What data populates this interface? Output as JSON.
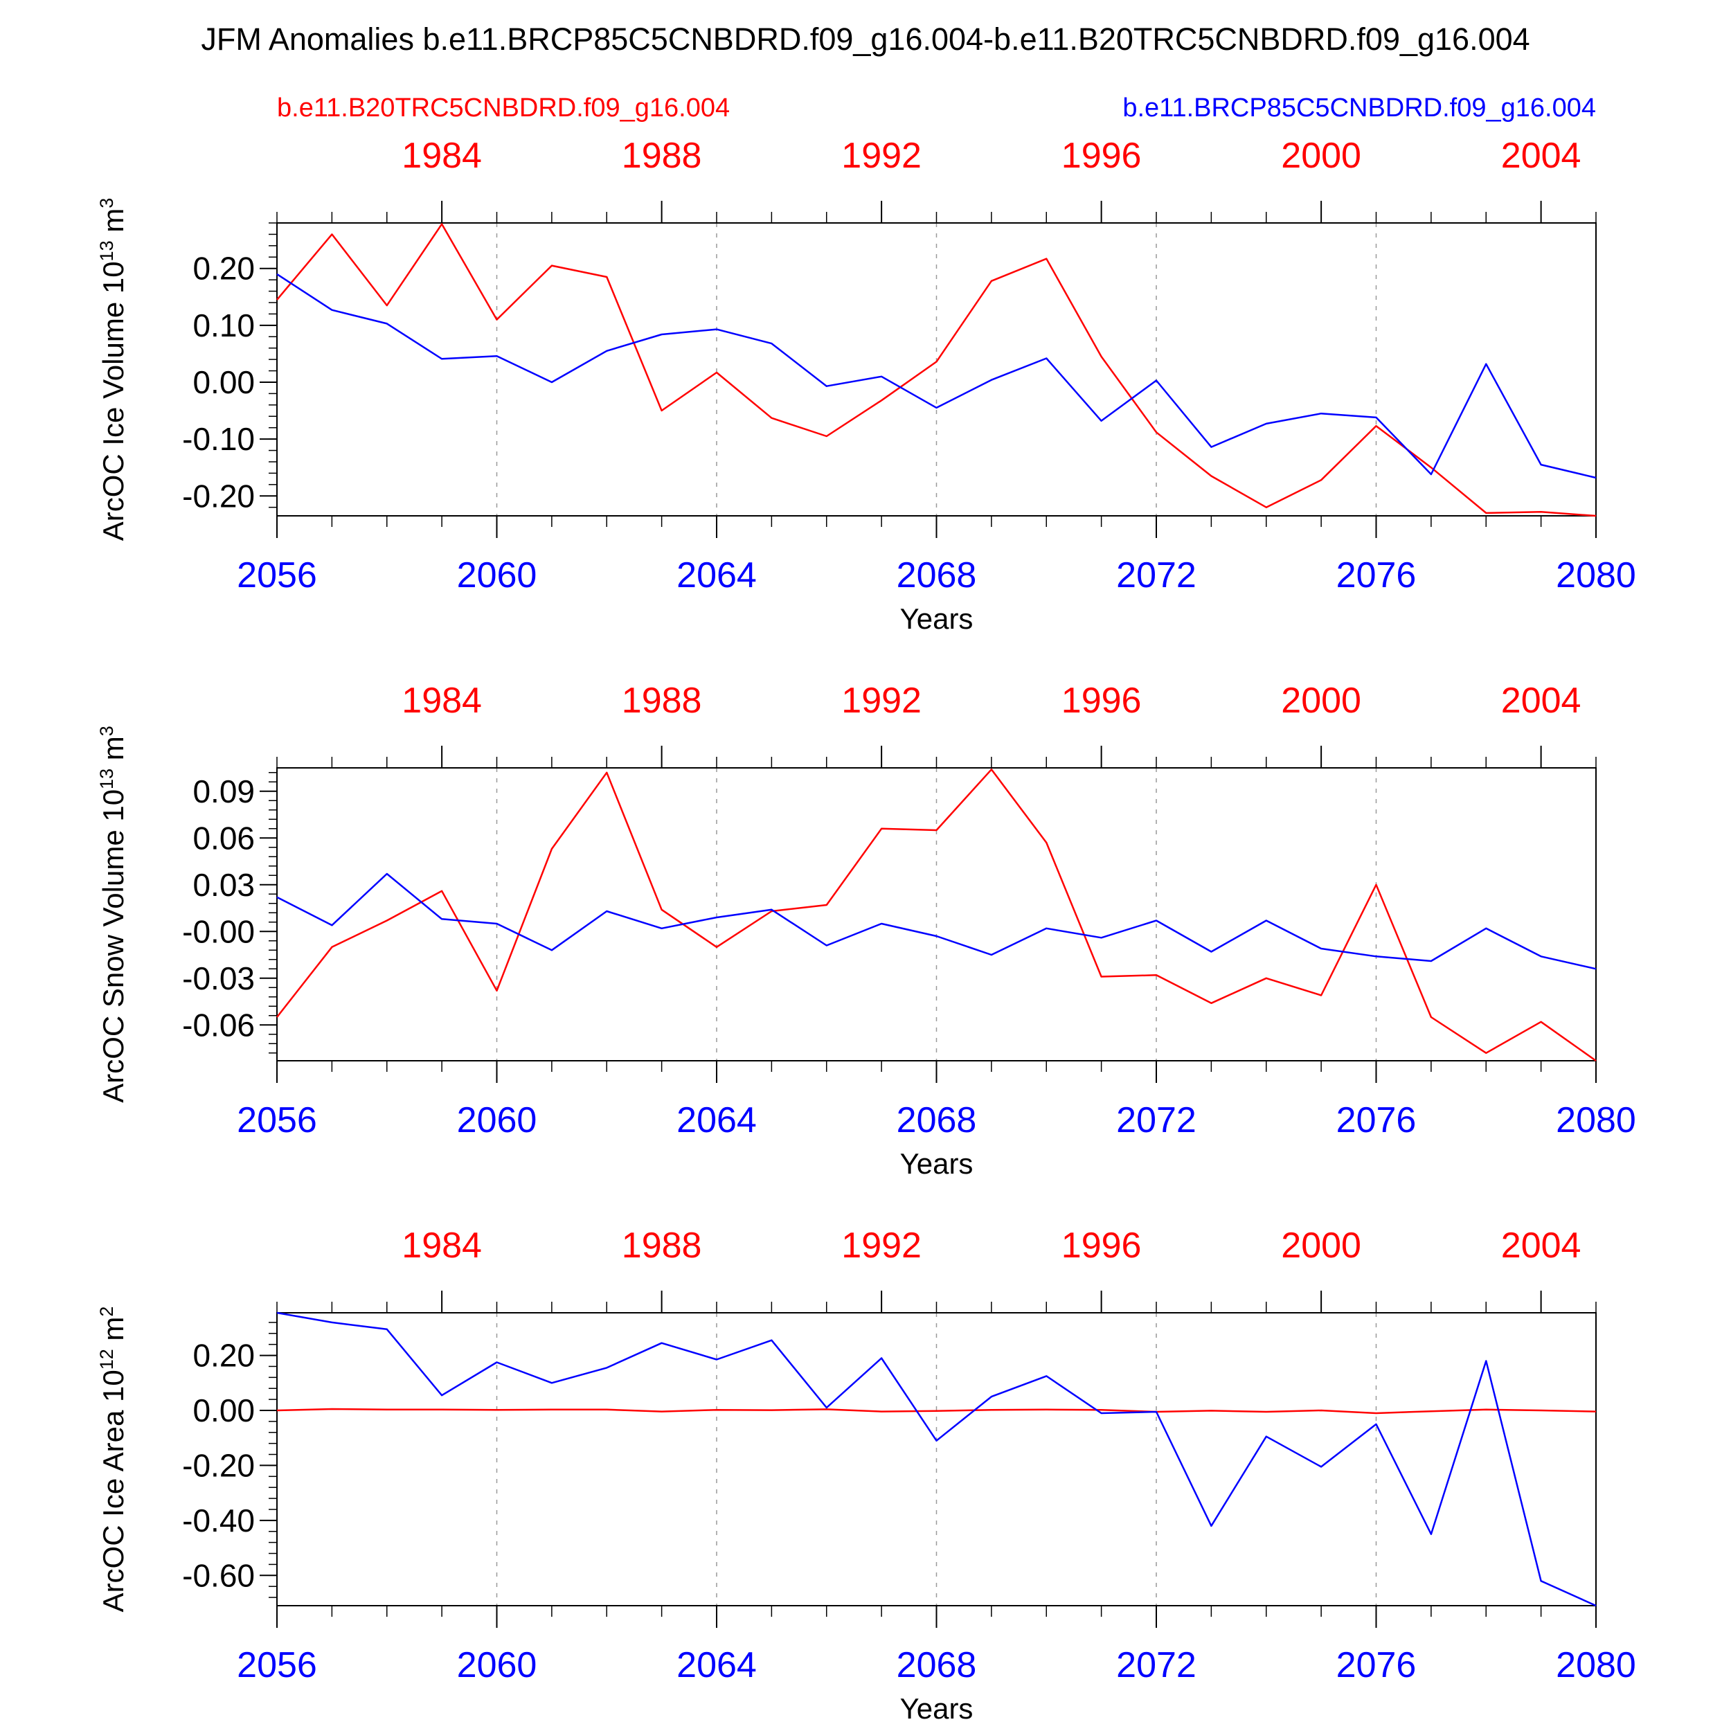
{
  "title": "JFM Anomalies b.e11.BRCP85C5CNBDRD.f09_g16.004-b.e11.B20TRC5CNBDRD.f09_g16.004",
  "legend": {
    "left": "b.e11.B20TRC5CNBDRD.f09_g16.004",
    "right": "b.e11.BRCP85C5CNBDRD.f09_g16.004"
  },
  "colors": {
    "historical": "#ff0000",
    "future": "#0000ff",
    "axis": "#000000",
    "grid": "#999999"
  },
  "chart_data": [
    {
      "type": "line",
      "ylabel": "ArcOC Ice Volume",
      "yunit_base": "10",
      "yunit_exp": "13",
      "yunit_suffix": "m",
      "yunit_suffix_exp": "3",
      "xlabel": "Years",
      "xlim": [
        2056,
        2080
      ],
      "ylim": [
        -0.235,
        0.28
      ],
      "yticks": [
        -0.2,
        -0.1,
        0.0,
        0.1,
        0.2
      ],
      "ytick_labels": [
        "-0.20",
        "-0.10",
        "0.00",
        "0.10",
        "0.20"
      ],
      "xticks_bottom": [
        2056,
        2060,
        2064,
        2068,
        2072,
        2076,
        2080
      ],
      "xtick_labels_bottom": [
        "2056",
        "2060",
        "2064",
        "2068",
        "2072",
        "2076",
        "2080"
      ],
      "xticks_top": [
        1984,
        1988,
        1992,
        1996,
        2000,
        2004
      ],
      "xtick_labels_top": [
        "1984",
        "1988",
        "1992",
        "1996",
        "2000",
        "2004"
      ],
      "top_axis_offset": 75,
      "grid_x": [
        2060,
        2064,
        2068,
        2072,
        2076
      ],
      "x": [
        2056,
        2057,
        2058,
        2059,
        2060,
        2061,
        2062,
        2063,
        2064,
        2065,
        2066,
        2067,
        2068,
        2069,
        2070,
        2071,
        2072,
        2073,
        2074,
        2075,
        2076,
        2077,
        2078,
        2079,
        2080
      ],
      "series": [
        {
          "name": "b.e11.B20TRC5CNBDRD.f09_g16.004",
          "color": "#ff0000",
          "values": [
            0.145,
            0.26,
            0.135,
            0.278,
            0.11,
            0.205,
            0.185,
            -0.05,
            0.017,
            -0.063,
            -0.095,
            -0.032,
            0.036,
            0.178,
            0.217,
            0.045,
            -0.088,
            -0.165,
            -0.22,
            -0.172,
            -0.077,
            -0.15,
            -0.23,
            -0.228,
            -0.235
          ]
        },
        {
          "name": "b.e11.BRCP85C5CNBDRD.f09_g16.004",
          "color": "#0000ff",
          "values": [
            0.19,
            0.127,
            0.103,
            0.041,
            0.046,
            0.0,
            0.055,
            0.084,
            0.093,
            0.068,
            -0.007,
            0.01,
            -0.045,
            0.004,
            0.042,
            -0.068,
            0.003,
            -0.114,
            -0.073,
            -0.055,
            -0.062,
            -0.162,
            0.032,
            -0.145,
            -0.168
          ]
        }
      ]
    },
    {
      "type": "line",
      "ylabel": "ArcOC Snow Volume",
      "yunit_base": "10",
      "yunit_exp": "13",
      "yunit_suffix": "m",
      "yunit_suffix_exp": "3",
      "xlabel": "Years",
      "xlim": [
        2056,
        2080
      ],
      "ylim": [
        -0.083,
        0.105
      ],
      "yticks": [
        -0.06,
        -0.03,
        0.0,
        0.03,
        0.06,
        0.09
      ],
      "ytick_labels": [
        "-0.06",
        "-0.03",
        "-0.00",
        "0.03",
        "0.06",
        "0.09"
      ],
      "xticks_bottom": [
        2056,
        2060,
        2064,
        2068,
        2072,
        2076,
        2080
      ],
      "xtick_labels_bottom": [
        "2056",
        "2060",
        "2064",
        "2068",
        "2072",
        "2076",
        "2080"
      ],
      "xticks_top": [
        1984,
        1988,
        1992,
        1996,
        2000,
        2004
      ],
      "xtick_labels_top": [
        "1984",
        "1988",
        "1992",
        "1996",
        "2000",
        "2004"
      ],
      "top_axis_offset": 75,
      "grid_x": [
        2060,
        2064,
        2068,
        2072,
        2076
      ],
      "x": [
        2056,
        2057,
        2058,
        2059,
        2060,
        2061,
        2062,
        2063,
        2064,
        2065,
        2066,
        2067,
        2068,
        2069,
        2070,
        2071,
        2072,
        2073,
        2074,
        2075,
        2076,
        2077,
        2078,
        2079,
        2080
      ],
      "series": [
        {
          "name": "b.e11.B20TRC5CNBDRD.f09_g16.004",
          "color": "#ff0000",
          "values": [
            -0.055,
            -0.01,
            0.007,
            0.026,
            -0.038,
            0.053,
            0.102,
            0.014,
            -0.01,
            0.013,
            0.017,
            0.066,
            0.065,
            0.104,
            0.057,
            -0.029,
            -0.028,
            -0.046,
            -0.03,
            -0.041,
            0.03,
            -0.055,
            -0.078,
            -0.058,
            -0.083
          ]
        },
        {
          "name": "b.e11.BRCP85C5CNBDRD.f09_g16.004",
          "color": "#0000ff",
          "values": [
            0.022,
            0.004,
            0.037,
            0.008,
            0.005,
            -0.012,
            0.013,
            0.002,
            0.009,
            0.014,
            -0.009,
            0.005,
            -0.003,
            -0.015,
            0.002,
            -0.004,
            0.007,
            -0.013,
            0.007,
            -0.011,
            -0.016,
            -0.019,
            0.002,
            -0.016,
            -0.024
          ]
        }
      ]
    },
    {
      "type": "line",
      "ylabel": "ArcOC Ice Area",
      "yunit_base": "10",
      "yunit_exp": "12",
      "yunit_suffix": "m",
      "yunit_suffix_exp": "2",
      "xlabel": "Years",
      "xlim": [
        2056,
        2080
      ],
      "ylim": [
        -0.71,
        0.355
      ],
      "yticks": [
        -0.6,
        -0.4,
        -0.2,
        0.0,
        0.2
      ],
      "ytick_labels": [
        "-0.60",
        "-0.40",
        "-0.20",
        "0.00",
        "0.20"
      ],
      "xticks_bottom": [
        2056,
        2060,
        2064,
        2068,
        2072,
        2076,
        2080
      ],
      "xtick_labels_bottom": [
        "2056",
        "2060",
        "2064",
        "2068",
        "2072",
        "2076",
        "2080"
      ],
      "xticks_top": [
        1984,
        1988,
        1992,
        1996,
        2000,
        2004
      ],
      "xtick_labels_top": [
        "1984",
        "1988",
        "1992",
        "1996",
        "2000",
        "2004"
      ],
      "top_axis_offset": 75,
      "grid_x": [
        2060,
        2064,
        2068,
        2072,
        2076
      ],
      "x": [
        2056,
        2057,
        2058,
        2059,
        2060,
        2061,
        2062,
        2063,
        2064,
        2065,
        2066,
        2067,
        2068,
        2069,
        2070,
        2071,
        2072,
        2073,
        2074,
        2075,
        2076,
        2077,
        2078,
        2079,
        2080
      ],
      "series": [
        {
          "name": "b.e11.B20TRC5CNBDRD.f09_g16.004",
          "color": "#ff0000",
          "values": [
            0.0,
            0.005,
            0.003,
            0.003,
            0.002,
            0.003,
            0.003,
            -0.004,
            0.002,
            0.001,
            0.004,
            -0.004,
            -0.002,
            0.002,
            0.003,
            0.002,
            -0.005,
            -0.001,
            -0.005,
            0.0,
            -0.01,
            -0.003,
            0.003,
            0.0,
            -0.004
          ]
        },
        {
          "name": "b.e11.BRCP85C5CNBDRD.f09_g16.004",
          "color": "#0000ff",
          "values": [
            0.355,
            0.32,
            0.295,
            0.055,
            0.175,
            0.1,
            0.155,
            0.245,
            0.185,
            0.255,
            0.01,
            0.19,
            -0.11,
            0.05,
            0.125,
            -0.01,
            -0.005,
            -0.42,
            -0.095,
            -0.205,
            -0.05,
            -0.45,
            0.18,
            -0.62,
            -0.71
          ]
        }
      ]
    }
  ]
}
